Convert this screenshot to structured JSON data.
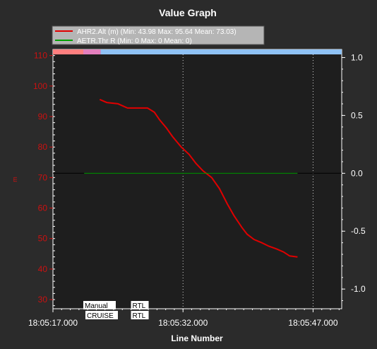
{
  "window": {
    "title": "Value Graph"
  },
  "legend": {
    "entries": [
      {
        "text": "AHR2.Alt (m) (Min: 43.98 Max: 95.64 Mean: 73.03)",
        "color": "#e00000"
      },
      {
        "text": "AETR.Thr R (Min: 0 Max: 0 Mean: 0)",
        "color": "#00a000"
      }
    ]
  },
  "colors": {
    "background": "#2b2b2b",
    "plot_background": "#1e1e1e",
    "left_axis": "#cc1111",
    "right_axis": "#ffffff",
    "grid": "#d8d8d8"
  },
  "mode_bands": [
    {
      "from": "18:05:17.000",
      "to": "18:05:20.500",
      "color": "#ff7f7f"
    },
    {
      "from": "18:05:20.500",
      "to": "18:05:22.500",
      "color": "#e47fbd"
    },
    {
      "from": "18:05:22.500",
      "to": "18:05:20.500",
      "color": "#8fc2f5"
    }
  ],
  "mode_labels": [
    {
      "top": "Manual",
      "bottom": "CRUISE",
      "x": "18:05:20.500"
    },
    {
      "top": "RTL",
      "bottom": "RTL",
      "x": "18:05:26.000"
    }
  ],
  "chart_data": {
    "type": "line",
    "xlabel": "Line Number",
    "ylabel": "m",
    "x_ticks": [
      "18:05:17.000",
      "18:05:32.000",
      "18:05:47.000"
    ],
    "xlim": [
      "18:05:17.000",
      "18:05:50.300"
    ],
    "ylim": [
      27,
      112
    ],
    "y_ticks": [
      30,
      40,
      50,
      60,
      70,
      80,
      90,
      100,
      110
    ],
    "y2lim": [
      -1.17,
      1.07
    ],
    "y2_ticks": [
      "1.0",
      "0.5",
      "0.0",
      "-0.5",
      "-1.0"
    ],
    "grid": true,
    "series": [
      {
        "name": "AHR2.Alt (m) (Min: 43.98 Max: 95.64 Mean: 73.03)",
        "axis": "left",
        "color": "#e00000",
        "x": [
          "18:05:22.400",
          "18:05:23.200",
          "18:05:24.500",
          "18:05:25.600",
          "18:05:26.700",
          "18:05:27.900",
          "18:05:28.700",
          "18:05:29.300",
          "18:05:30.100",
          "18:05:30.800",
          "18:05:31.800",
          "18:05:32.700",
          "18:05:33.500",
          "18:05:34.300",
          "18:05:35.300",
          "18:05:36.200",
          "18:05:37.100",
          "18:05:37.900",
          "18:05:38.800",
          "18:05:39.400",
          "18:05:40.200",
          "18:05:41.100",
          "18:05:41.900",
          "18:05:42.800",
          "18:05:43.600",
          "18:05:44.300",
          "18:05:45.200"
        ],
        "y": [
          95.6,
          94.6,
          94.2,
          92.8,
          92.8,
          92.8,
          91.4,
          88.9,
          86.2,
          83.4,
          80.0,
          77.6,
          74.6,
          72.2,
          70.0,
          66.4,
          61.4,
          57.4,
          53.6,
          51.4,
          49.7,
          48.6,
          47.5,
          46.6,
          45.6,
          44.3,
          43.98
        ]
      },
      {
        "name": "AETR.Thr R (Min: 0 Max: 0 Mean: 0)",
        "axis": "right",
        "color": "#00a000",
        "x": [
          "18:05:20.600",
          "18:05:45.200"
        ],
        "y": [
          0,
          0
        ]
      }
    ]
  }
}
